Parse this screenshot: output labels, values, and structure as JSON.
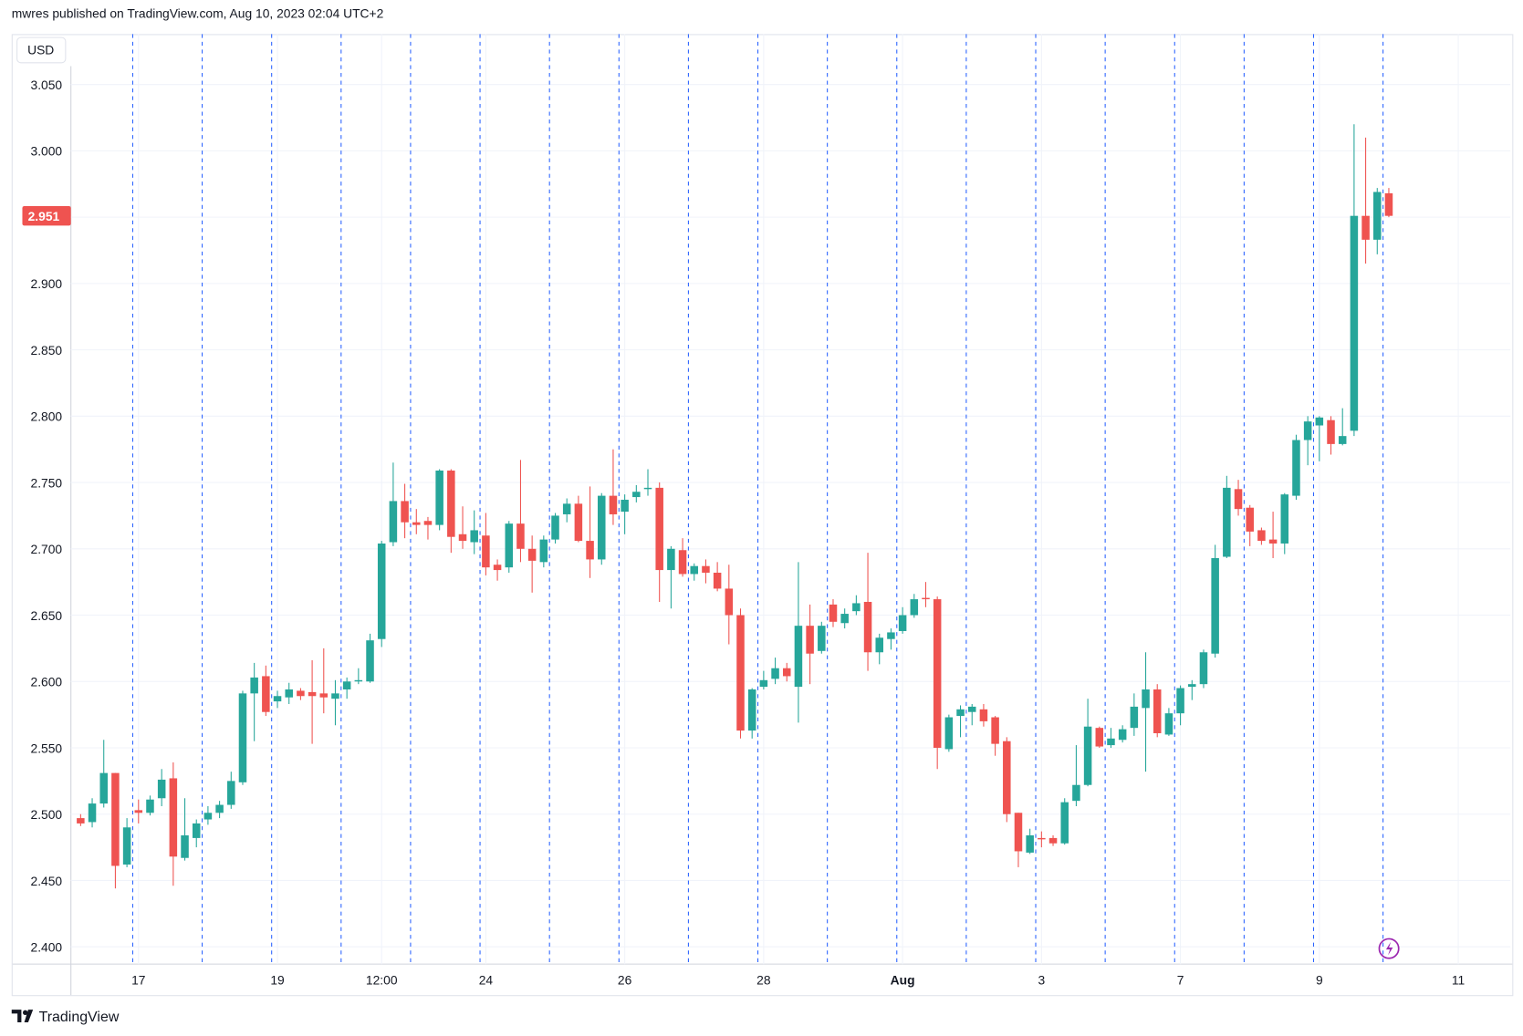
{
  "chart_data": {
    "type": "candlestick",
    "title": "mwres published on TradingView.com, Aug 10, 2023 02:04 UTC+2",
    "currency": "USD",
    "brand": "TradingView",
    "up_color": "#26a69a",
    "down_color": "#ef5350",
    "ylim": [
      2.387,
      3.088
    ],
    "yticks": [
      {
        "value": 2.4,
        "label": "2.400"
      },
      {
        "value": 2.45,
        "label": "2.450"
      },
      {
        "value": 2.5,
        "label": "2.500"
      },
      {
        "value": 2.55,
        "label": "2.550"
      },
      {
        "value": 2.6,
        "label": "2.600"
      },
      {
        "value": 2.65,
        "label": "2.650"
      },
      {
        "value": 2.7,
        "label": "2.700"
      },
      {
        "value": 2.75,
        "label": "2.750"
      },
      {
        "value": 2.8,
        "label": "2.800"
      },
      {
        "value": 2.85,
        "label": "2.850"
      },
      {
        "value": 2.9,
        "label": "2.900"
      },
      {
        "value": 2.95,
        "label": "2.950"
      },
      {
        "value": 3.0,
        "label": "3.000"
      },
      {
        "value": 3.05,
        "label": "3.050"
      }
    ],
    "xlim": [
      -0.84,
      123.5
    ],
    "xticks": [
      {
        "value": 5,
        "label": "17"
      },
      {
        "value": 17,
        "label": "19"
      },
      {
        "value": 26,
        "label": "12:00"
      },
      {
        "value": 35,
        "label": "24"
      },
      {
        "value": 47,
        "label": "26"
      },
      {
        "value": 59,
        "label": "28"
      },
      {
        "value": 71,
        "label": "Aug"
      },
      {
        "value": 83,
        "label": "3"
      },
      {
        "value": 95,
        "label": "7"
      },
      {
        "value": 107,
        "label": "9"
      },
      {
        "value": 119,
        "label": "11"
      }
    ],
    "grid": true,
    "vertical_lines": [
      4.5,
      10.5,
      16.5,
      22.5,
      28.5,
      34.5,
      40.5,
      46.5,
      52.5,
      58.5,
      64.5,
      70.5,
      76.5,
      82.5,
      88.5,
      94.5,
      100.5,
      106.5,
      112.5
    ],
    "last_price": {
      "value": 2.951,
      "label": "2.951"
    },
    "open": [
      2.497,
      2.494,
      2.508,
      2.531,
      2.462,
      2.503,
      2.501,
      2.512,
      2.527,
      2.467,
      2.482,
      2.496,
      2.501,
      2.507,
      2.524,
      2.591,
      2.604,
      2.585,
      2.588,
      2.593,
      2.592,
      2.591,
      2.587,
      2.594,
      2.6,
      2.6,
      2.632,
      2.705,
      2.736,
      2.72,
      2.721,
      2.718,
      2.759,
      2.711,
      2.705,
      2.71,
      2.688,
      2.686,
      2.719,
      2.7,
      2.69,
      2.707,
      2.726,
      2.734,
      2.706,
      2.692,
      2.74,
      2.728,
      2.739,
      2.745,
      2.746,
      2.684,
      2.699,
      2.681,
      2.687,
      2.682,
      2.67,
      2.65,
      2.563,
      2.596,
      2.602,
      2.61,
      2.596,
      2.642,
      2.623,
      2.658,
      2.644,
      2.653,
      2.66,
      2.622,
      2.632,
      2.638,
      2.65,
      2.663,
      2.662,
      2.549,
      2.574,
      2.577,
      2.579,
      2.573,
      2.555,
      2.501,
      2.471,
      2.482,
      2.482,
      2.478,
      2.51,
      2.522,
      2.565,
      2.552,
      2.556,
      2.565,
      2.58,
      2.594,
      2.56,
      2.576,
      2.596,
      2.598,
      2.621,
      2.694,
      2.745,
      2.731,
      2.714,
      2.707,
      2.704,
      2.74,
      2.782,
      2.793,
      2.797,
      2.779,
      2.789,
      2.951,
      2.933,
      2.968
    ],
    "high": [
      2.5,
      2.512,
      2.556,
      2.531,
      2.497,
      2.511,
      2.514,
      2.534,
      2.539,
      2.512,
      2.496,
      2.506,
      2.51,
      2.532,
      2.593,
      2.614,
      2.612,
      2.593,
      2.599,
      2.595,
      2.616,
      2.625,
      2.601,
      2.603,
      2.61,
      2.636,
      2.706,
      2.765,
      2.749,
      2.73,
      2.724,
      2.76,
      2.76,
      2.732,
      2.729,
      2.727,
      2.692,
      2.721,
      2.767,
      2.71,
      2.71,
      2.727,
      2.738,
      2.74,
      2.747,
      2.742,
      2.775,
      2.741,
      2.748,
      2.76,
      2.75,
      2.702,
      2.708,
      2.689,
      2.692,
      2.69,
      2.688,
      2.655,
      2.595,
      2.608,
      2.618,
      2.614,
      2.69,
      2.658,
      2.645,
      2.662,
      2.655,
      2.665,
      2.697,
      2.636,
      2.64,
      2.656,
      2.666,
      2.675,
      2.664,
      2.575,
      2.582,
      2.583,
      2.583,
      2.574,
      2.558,
      2.501,
      2.489,
      2.487,
      2.484,
      2.512,
      2.552,
      2.587,
      2.566,
      2.565,
      2.567,
      2.591,
      2.622,
      2.598,
      2.58,
      2.597,
      2.601,
      2.624,
      2.703,
      2.755,
      2.752,
      2.733,
      2.716,
      2.728,
      2.742,
      2.786,
      2.8,
      2.8,
      2.8,
      2.806,
      3.02,
      3.01,
      2.972,
      2.972
    ],
    "low": [
      2.491,
      2.49,
      2.505,
      2.444,
      2.46,
      2.493,
      2.499,
      2.506,
      2.446,
      2.465,
      2.475,
      2.492,
      2.497,
      2.504,
      2.522,
      2.555,
      2.574,
      2.58,
      2.583,
      2.586,
      2.553,
      2.576,
      2.567,
      2.587,
      2.598,
      2.599,
      2.626,
      2.702,
      2.708,
      2.711,
      2.707,
      2.714,
      2.697,
      2.7,
      2.696,
      2.68,
      2.676,
      2.682,
      2.69,
      2.667,
      2.686,
      2.704,
      2.72,
      2.705,
      2.678,
      2.688,
      2.718,
      2.711,
      2.735,
      2.74,
      2.66,
      2.655,
      2.679,
      2.676,
      2.674,
      2.668,
      2.628,
      2.557,
      2.557,
      2.594,
      2.598,
      2.6,
      2.569,
      2.598,
      2.621,
      2.641,
      2.64,
      2.65,
      2.608,
      2.613,
      2.624,
      2.636,
      2.648,
      2.656,
      2.534,
      2.547,
      2.558,
      2.567,
      2.566,
      2.544,
      2.494,
      2.46,
      2.47,
      2.475,
      2.476,
      2.477,
      2.506,
      2.521,
      2.55,
      2.55,
      2.554,
      2.559,
      2.532,
      2.558,
      2.559,
      2.567,
      2.586,
      2.595,
      2.618,
      2.693,
      2.725,
      2.702,
      2.703,
      2.693,
      2.696,
      2.737,
      2.763,
      2.766,
      2.771,
      2.778,
      2.785,
      2.915,
      2.922,
      2.95
    ],
    "close": [
      2.493,
      2.508,
      2.531,
      2.461,
      2.49,
      2.501,
      2.511,
      2.526,
      2.468,
      2.484,
      2.493,
      2.501,
      2.507,
      2.525,
      2.591,
      2.603,
      2.577,
      2.589,
      2.594,
      2.589,
      2.589,
      2.588,
      2.591,
      2.6,
      2.601,
      2.631,
      2.704,
      2.736,
      2.72,
      2.718,
      2.718,
      2.759,
      2.709,
      2.706,
      2.714,
      2.686,
      2.684,
      2.719,
      2.7,
      2.691,
      2.707,
      2.725,
      2.734,
      2.706,
      2.692,
      2.74,
      2.726,
      2.737,
      2.743,
      2.746,
      2.684,
      2.7,
      2.681,
      2.687,
      2.682,
      2.67,
      2.65,
      2.563,
      2.594,
      2.601,
      2.61,
      2.604,
      2.642,
      2.621,
      2.642,
      2.645,
      2.651,
      2.659,
      2.622,
      2.633,
      2.637,
      2.65,
      2.662,
      2.662,
      2.55,
      2.573,
      2.579,
      2.581,
      2.57,
      2.553,
      2.5,
      2.472,
      2.484,
      2.481,
      2.478,
      2.509,
      2.522,
      2.566,
      2.551,
      2.557,
      2.564,
      2.581,
      2.594,
      2.561,
      2.576,
      2.595,
      2.598,
      2.622,
      2.693,
      2.746,
      2.73,
      2.713,
      2.706,
      2.704,
      2.741,
      2.782,
      2.796,
      2.799,
      2.779,
      2.785,
      2.951,
      2.933,
      2.969,
      2.951
    ]
  }
}
